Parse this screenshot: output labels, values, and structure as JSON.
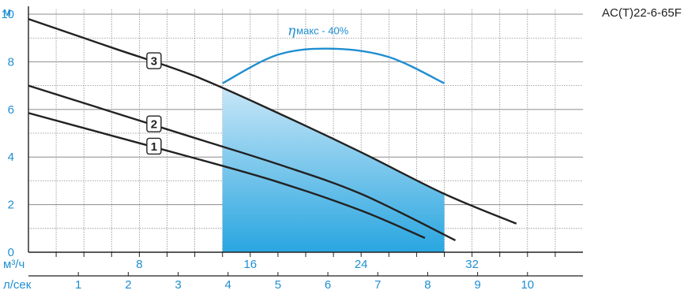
{
  "model_label": "AC(T)22-6-65F",
  "chart_data": {
    "type": "line",
    "title": "",
    "ylabel": "м",
    "xlabel_primary": "м³/ч",
    "xlabel_secondary": "л/сек",
    "xlim": [
      0,
      40
    ],
    "ylim": [
      0,
      10.2
    ],
    "grid": true,
    "y_ticks": [
      0,
      2,
      4,
      6,
      8,
      10
    ],
    "x_ticks_primary": [
      8,
      16,
      24,
      32
    ],
    "x_ticks_secondary": [
      1,
      2,
      3,
      4,
      5,
      6,
      7,
      8,
      9,
      10
    ],
    "series": [
      {
        "name": "1",
        "x": [
          0,
          6,
          12,
          18,
          24,
          28.6
        ],
        "y": [
          5.85,
          4.9,
          3.95,
          2.95,
          1.75,
          0.6
        ]
      },
      {
        "name": "2",
        "x": [
          0,
          6,
          12,
          18,
          24,
          30.8
        ],
        "y": [
          7.0,
          5.9,
          4.8,
          3.7,
          2.45,
          0.5
        ]
      },
      {
        "name": "3",
        "x": [
          0,
          6,
          12,
          18,
          24,
          30,
          35.2
        ],
        "y": [
          9.8,
          8.6,
          7.4,
          5.85,
          4.2,
          2.45,
          1.2
        ]
      }
    ],
    "operating_range": {
      "x_from": 14,
      "x_to": 30,
      "series": "3"
    },
    "efficiency": {
      "label": "макс - 40%",
      "symbol": "η",
      "curve_x": [
        14,
        18,
        22,
        26,
        30
      ],
      "curve_y": [
        7.1,
        8.3,
        8.55,
        8.2,
        7.1
      ]
    },
    "colors": {
      "curve": "#222222",
      "axis_text": "#1f8ed0",
      "grid": "#8c8c8c",
      "fill_top": "#c7e6f7",
      "fill_bottom": "#29a6e0"
    }
  }
}
